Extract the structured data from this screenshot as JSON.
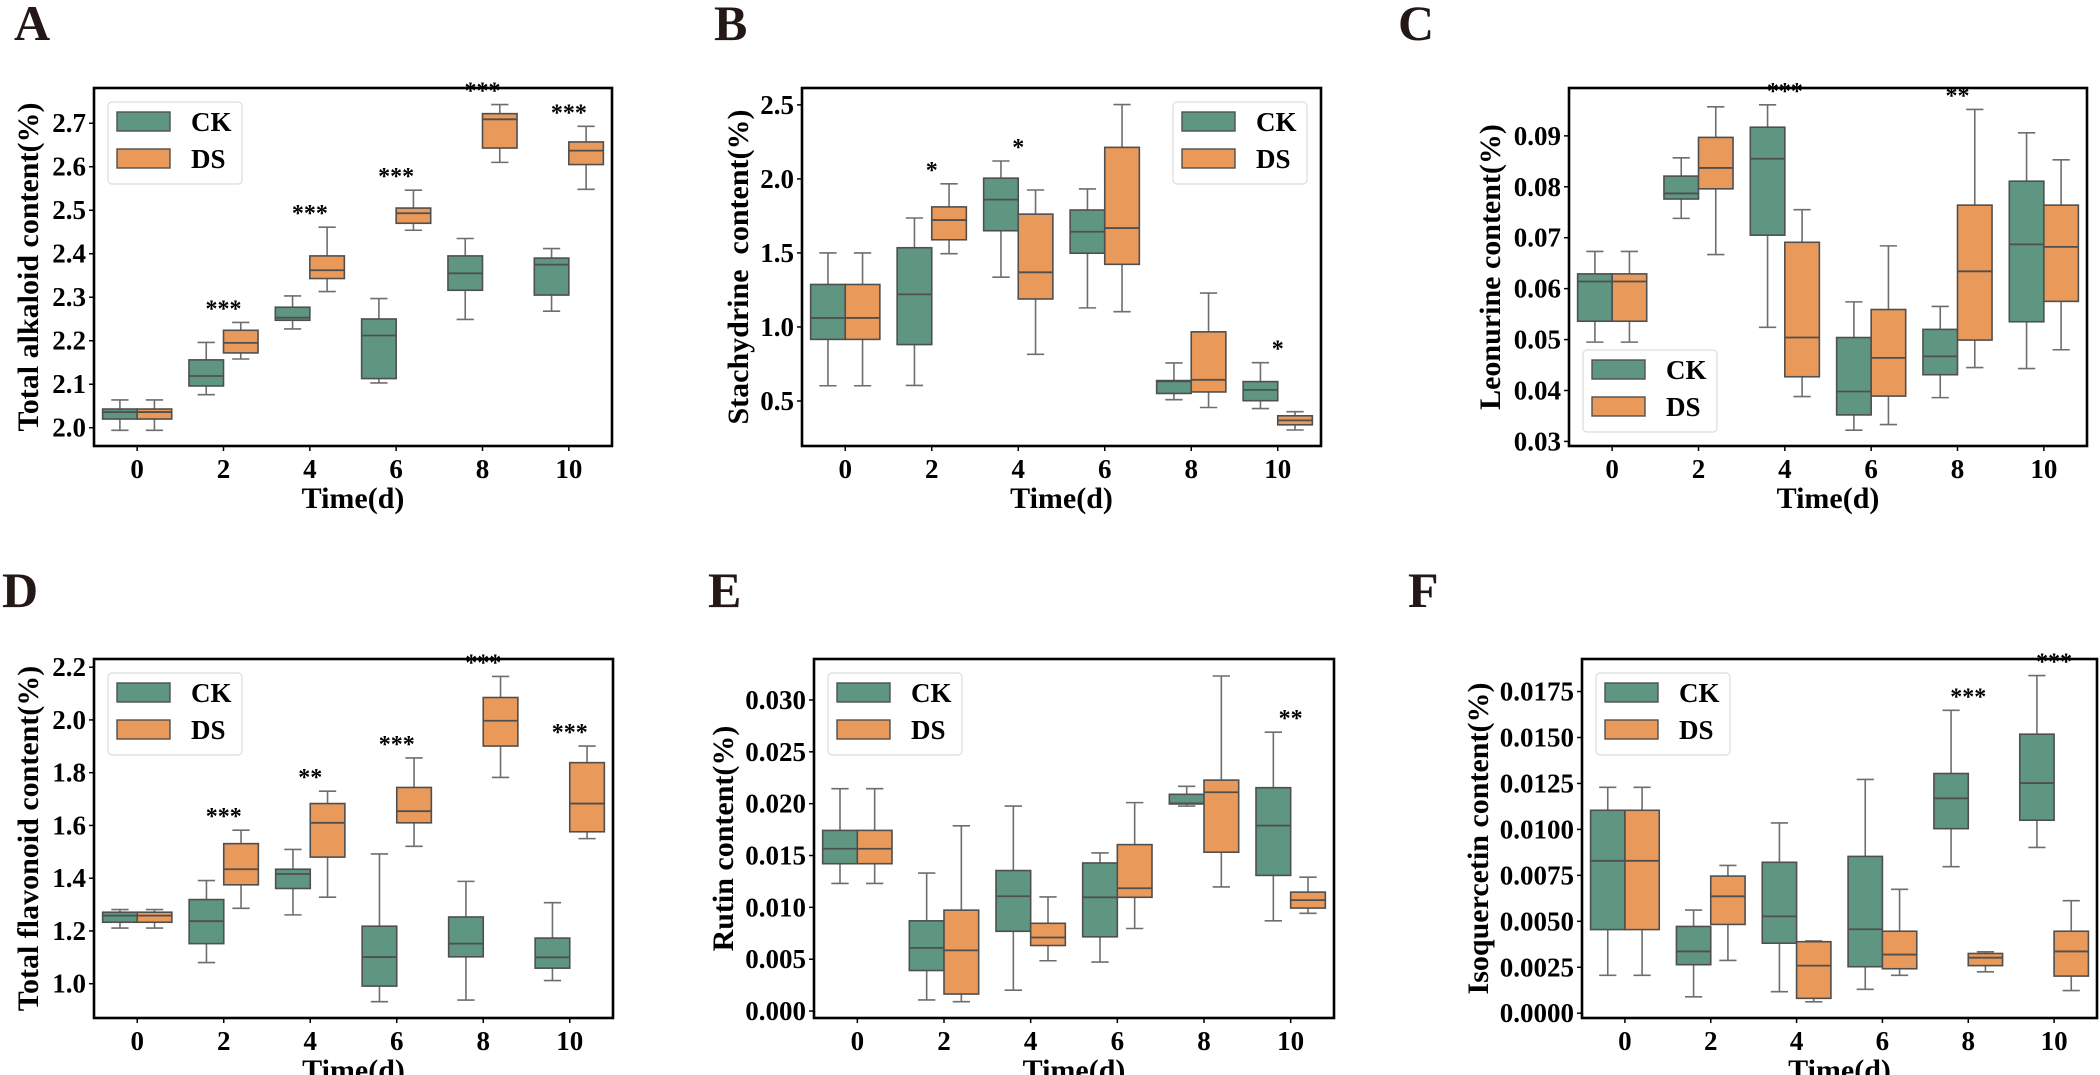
{
  "colors": {
    "CK": "#5f9681",
    "DS": "#e99a5b",
    "edge": "#4f4f4f",
    "whisker": "#6e6e6e"
  },
  "chart_data": [
    {
      "panel": "A",
      "type": "box",
      "xlabel": "Time(d)",
      "ylabel": "Total alkaloid content(%)",
      "categories": [
        "0",
        "2",
        "4",
        "6",
        "8",
        "10"
      ],
      "ylim": [
        1.958,
        2.781
      ],
      "yticks": [
        "2.0",
        "2.1",
        "2.2",
        "2.3",
        "2.4",
        "2.5",
        "2.6",
        "2.7"
      ],
      "legend": "upper-left",
      "series": [
        {
          "name": "CK",
          "boxes": [
            {
              "min": 1.994,
              "q1": 2.02,
              "median": 2.036,
              "q3": 2.043,
              "max": 2.064
            },
            {
              "min": 2.076,
              "q1": 2.096,
              "median": 2.119,
              "q3": 2.156,
              "max": 2.196
            },
            {
              "min": 2.227,
              "q1": 2.247,
              "median": 2.253,
              "q3": 2.277,
              "max": 2.303
            },
            {
              "min": 2.103,
              "q1": 2.113,
              "median": 2.212,
              "q3": 2.25,
              "max": 2.297
            },
            {
              "min": 2.249,
              "q1": 2.316,
              "median": 2.355,
              "q3": 2.395,
              "max": 2.435
            },
            {
              "min": 2.268,
              "q1": 2.305,
              "median": 2.375,
              "q3": 2.39,
              "max": 2.412
            }
          ]
        },
        {
          "name": "DS",
          "boxes": [
            {
              "min": 1.994,
              "q1": 2.02,
              "median": 2.036,
              "q3": 2.043,
              "max": 2.064
            },
            {
              "min": 2.158,
              "q1": 2.172,
              "median": 2.195,
              "q3": 2.224,
              "max": 2.242
            },
            {
              "min": 2.313,
              "q1": 2.343,
              "median": 2.362,
              "q3": 2.395,
              "max": 2.461
            },
            {
              "min": 2.454,
              "q1": 2.47,
              "median": 2.493,
              "q3": 2.505,
              "max": 2.546
            },
            {
              "min": 2.61,
              "q1": 2.643,
              "median": 2.709,
              "q3": 2.722,
              "max": 2.743
            },
            {
              "min": 2.548,
              "q1": 2.605,
              "median": 2.637,
              "q3": 2.657,
              "max": 2.693
            }
          ]
        }
      ],
      "significance": [
        "",
        "***",
        "***",
        "***",
        "***",
        "***"
      ]
    },
    {
      "panel": "B",
      "type": "box",
      "xlabel": "Time(d)",
      "ylabel": "Stachydrine  content(%)",
      "categories": [
        "0",
        "2",
        "4",
        "6",
        "8",
        "10"
      ],
      "ylim": [
        0.196,
        2.614
      ],
      "yticks": [
        "0.5",
        "1.0",
        "1.5",
        "2.0",
        "2.5"
      ],
      "legend": "upper-right",
      "series": [
        {
          "name": "CK",
          "boxes": [
            {
              "min": 0.603,
              "q1": 0.916,
              "median": 1.061,
              "q3": 1.287,
              "max": 1.5
            },
            {
              "min": 0.605,
              "q1": 0.881,
              "median": 1.22,
              "q3": 1.535,
              "max": 1.736
            },
            {
              "min": 1.336,
              "q1": 1.65,
              "median": 1.86,
              "q3": 2.005,
              "max": 2.121
            },
            {
              "min": 1.129,
              "q1": 1.498,
              "median": 1.643,
              "q3": 1.79,
              "max": 1.932
            },
            {
              "min": 0.509,
              "q1": 0.551,
              "median": 0.633,
              "q3": 0.638,
              "max": 0.757
            },
            {
              "min": 0.449,
              "q1": 0.502,
              "median": 0.575,
              "q3": 0.631,
              "max": 0.759
            }
          ]
        },
        {
          "name": "DS",
          "boxes": [
            {
              "min": 0.603,
              "q1": 0.916,
              "median": 1.061,
              "q3": 1.287,
              "max": 1.5
            },
            {
              "min": 1.495,
              "q1": 1.589,
              "median": 1.722,
              "q3": 1.811,
              "max": 1.967
            },
            {
              "min": 0.815,
              "q1": 1.189,
              "median": 1.369,
              "q3": 1.762,
              "max": 1.925
            },
            {
              "min": 1.103,
              "q1": 1.423,
              "median": 1.668,
              "q3": 2.213,
              "max": 2.502
            },
            {
              "min": 0.456,
              "q1": 0.561,
              "median": 0.643,
              "q3": 0.967,
              "max": 1.229
            },
            {
              "min": 0.304,
              "q1": 0.339,
              "median": 0.369,
              "q3": 0.4,
              "max": 0.428
            }
          ]
        }
      ],
      "significance": [
        "",
        "*",
        "*",
        "",
        "",
        "*"
      ]
    },
    {
      "panel": "C",
      "type": "box",
      "xlabel": "Time(d)",
      "ylabel": "Leonurine content(%)",
      "categories": [
        "0",
        "2",
        "4",
        "6",
        "8",
        "10"
      ],
      "ylim": [
        0.0291,
        0.0994
      ],
      "yticks": [
        "0.03",
        "0.04",
        "0.05",
        "0.06",
        "0.07",
        "0.08",
        "0.09"
      ],
      "legend": "lower-left",
      "series": [
        {
          "name": "CK",
          "boxes": [
            {
              "min": 0.0495,
              "q1": 0.0536,
              "median": 0.0614,
              "q3": 0.0629,
              "max": 0.0673
            },
            {
              "min": 0.0738,
              "q1": 0.0776,
              "median": 0.0787,
              "q3": 0.0821,
              "max": 0.0857
            },
            {
              "min": 0.0524,
              "q1": 0.0705,
              "median": 0.0855,
              "q3": 0.0917,
              "max": 0.0961
            },
            {
              "min": 0.0322,
              "q1": 0.0352,
              "median": 0.0398,
              "q3": 0.0504,
              "max": 0.0574
            },
            {
              "min": 0.0386,
              "q1": 0.0431,
              "median": 0.0467,
              "q3": 0.052,
              "max": 0.0565
            },
            {
              "min": 0.0443,
              "q1": 0.0535,
              "median": 0.0687,
              "q3": 0.0811,
              "max": 0.0906
            }
          ]
        },
        {
          "name": "DS",
          "boxes": [
            {
              "min": 0.0495,
              "q1": 0.0536,
              "median": 0.0614,
              "q3": 0.0629,
              "max": 0.0673
            },
            {
              "min": 0.0667,
              "q1": 0.0796,
              "median": 0.0837,
              "q3": 0.0897,
              "max": 0.0957
            },
            {
              "min": 0.0388,
              "q1": 0.0427,
              "median": 0.0504,
              "q3": 0.0691,
              "max": 0.0755
            },
            {
              "min": 0.0333,
              "q1": 0.0389,
              "median": 0.0464,
              "q3": 0.0559,
              "max": 0.0684
            },
            {
              "min": 0.0445,
              "q1": 0.0499,
              "median": 0.0634,
              "q3": 0.0764,
              "max": 0.0952
            },
            {
              "min": 0.048,
              "q1": 0.0575,
              "median": 0.0682,
              "q3": 0.0764,
              "max": 0.0853
            }
          ]
        }
      ],
      "significance": [
        "",
        "",
        "***",
        "",
        "**",
        ""
      ]
    },
    {
      "panel": "D",
      "type": "box",
      "xlabel": "Time(d)",
      "ylabel": "Total flavonoid content(%)",
      "categories": [
        "0",
        "2",
        "4",
        "6",
        "8",
        "10"
      ],
      "ylim": [
        0.87,
        2.231
      ],
      "yticks": [
        "1.0",
        "1.2",
        "1.4",
        "1.6",
        "1.8",
        "2.0",
        "2.2"
      ],
      "legend": "upper-left",
      "series": [
        {
          "name": "CK",
          "boxes": [
            {
              "min": 1.211,
              "q1": 1.233,
              "median": 1.258,
              "q3": 1.271,
              "max": 1.281
            },
            {
              "min": 1.08,
              "q1": 1.152,
              "median": 1.237,
              "q3": 1.319,
              "max": 1.391
            },
            {
              "min": 1.261,
              "q1": 1.361,
              "median": 1.416,
              "q3": 1.434,
              "max": 1.509
            },
            {
              "min": 0.932,
              "q1": 0.991,
              "median": 1.101,
              "q3": 1.218,
              "max": 1.492
            },
            {
              "min": 0.938,
              "q1": 1.102,
              "median": 1.152,
              "q3": 1.253,
              "max": 1.388
            },
            {
              "min": 1.012,
              "q1": 1.059,
              "median": 1.1,
              "q3": 1.173,
              "max": 1.307
            }
          ]
        },
        {
          "name": "DS",
          "boxes": [
            {
              "min": 1.211,
              "q1": 1.233,
              "median": 1.258,
              "q3": 1.271,
              "max": 1.281
            },
            {
              "min": 1.286,
              "q1": 1.375,
              "median": 1.434,
              "q3": 1.531,
              "max": 1.582
            },
            {
              "min": 1.328,
              "q1": 1.48,
              "median": 1.61,
              "q3": 1.683,
              "max": 1.73
            },
            {
              "min": 1.521,
              "q1": 1.61,
              "median": 1.654,
              "q3": 1.744,
              "max": 1.856
            },
            {
              "min": 1.782,
              "q1": 1.901,
              "median": 1.997,
              "q3": 2.085,
              "max": 2.165
            },
            {
              "min": 1.55,
              "q1": 1.576,
              "median": 1.683,
              "q3": 1.838,
              "max": 1.901
            }
          ]
        }
      ],
      "significance": [
        "",
        "***",
        "**",
        "***",
        "***",
        "***"
      ]
    },
    {
      "panel": "E",
      "type": "box",
      "xlabel": "Time(d)",
      "ylabel": "Rutin content(%)",
      "categories": [
        "0",
        "2",
        "4",
        "6",
        "8",
        "10"
      ],
      "ylim": [
        -0.00067,
        0.03395
      ],
      "yticks": [
        "0.000",
        "0.005",
        "0.010",
        "0.015",
        "0.020",
        "0.025",
        "0.030"
      ],
      "legend": "upper-left",
      "series": [
        {
          "name": "CK",
          "boxes": [
            {
              "min": 0.01231,
              "q1": 0.01421,
              "median": 0.01565,
              "q3": 0.01742,
              "max": 0.02144
            },
            {
              "min": 0.00107,
              "q1": 0.00391,
              "median": 0.00609,
              "q3": 0.0087,
              "max": 0.01331
            },
            {
              "min": 0.00201,
              "q1": 0.00769,
              "median": 0.01107,
              "q3": 0.01355,
              "max": 0.01977
            },
            {
              "min": 0.00472,
              "q1": 0.00716,
              "median": 0.01097,
              "q3": 0.01428,
              "max": 0.01525
            },
            {
              "min": 0.01977,
              "q1": 0.01997,
              "median": 0.02003,
              "q3": 0.0209,
              "max": 0.02167
            },
            {
              "min": 0.0087,
              "q1": 0.01308,
              "median": 0.01789,
              "q3": 0.02154,
              "max": 0.02689
            }
          ]
        },
        {
          "name": "DS",
          "boxes": [
            {
              "min": 0.01231,
              "q1": 0.01421,
              "median": 0.01565,
              "q3": 0.01742,
              "max": 0.02144
            },
            {
              "min": 0.0009,
              "q1": 0.00164,
              "median": 0.00585,
              "q3": 0.00973,
              "max": 0.01786
            },
            {
              "min": 0.00485,
              "q1": 0.00632,
              "median": 0.00709,
              "q3": 0.00846,
              "max": 0.011
            },
            {
              "min": 0.00796,
              "q1": 0.01097,
              "median": 0.01184,
              "q3": 0.01605,
              "max": 0.0201
            },
            {
              "min": 0.01197,
              "q1": 0.01532,
              "median": 0.0211,
              "q3": 0.02227,
              "max": 0.03231
            },
            {
              "min": 0.00943,
              "q1": 0.00993,
              "median": 0.0107,
              "q3": 0.01147,
              "max": 0.01291
            }
          ]
        }
      ],
      "significance": [
        "",
        "",
        "",
        "",
        "",
        "**"
      ]
    },
    {
      "panel": "F",
      "type": "box",
      "xlabel": "Time(d)",
      "ylabel": "Isoquercetin content(%)",
      "categories": [
        "0",
        "2",
        "4",
        "6",
        "8",
        "10"
      ],
      "ylim": [
        -0.00026,
        0.01927
      ],
      "yticks": [
        "0.0000",
        "0.0025",
        "0.0050",
        "0.0075",
        "0.0100",
        "0.0125",
        "0.0150",
        "0.0175"
      ],
      "legend": "upper-left",
      "series": [
        {
          "name": "CK",
          "boxes": [
            {
              "min": 0.00206,
              "q1": 0.00455,
              "median": 0.00829,
              "q3": 0.01104,
              "max": 0.01229
            },
            {
              "min": 0.00089,
              "q1": 0.00264,
              "median": 0.00336,
              "q3": 0.00472,
              "max": 0.00561
            },
            {
              "min": 0.00117,
              "q1": 0.00381,
              "median": 0.00527,
              "q3": 0.00821,
              "max": 0.01035
            },
            {
              "min": 0.0013,
              "q1": 0.00253,
              "median": 0.00457,
              "q3": 0.00853,
              "max": 0.01272
            },
            {
              "min": 0.00797,
              "q1": 0.01004,
              "median": 0.01169,
              "q3": 0.01304,
              "max": 0.01648
            },
            {
              "min": 0.00902,
              "q1": 0.0105,
              "median": 0.01252,
              "q3": 0.01518,
              "max": 0.01837
            }
          ]
        },
        {
          "name": "DS",
          "boxes": [
            {
              "min": 0.00206,
              "q1": 0.00455,
              "median": 0.00829,
              "q3": 0.01104,
              "max": 0.01229
            },
            {
              "min": 0.00287,
              "q1": 0.00483,
              "median": 0.00636,
              "q3": 0.00746,
              "max": 0.00804
            },
            {
              "min": 0.00062,
              "q1": 0.00081,
              "median": 0.00259,
              "q3": 0.00389,
              "max": 0.00393
            },
            {
              "min": 0.00206,
              "q1": 0.00242,
              "median": 0.00319,
              "q3": 0.00446,
              "max": 0.00674
            },
            {
              "min": 0.00225,
              "q1": 0.00259,
              "median": 0.00302,
              "q3": 0.00325,
              "max": 0.00334
            },
            {
              "min": 0.00123,
              "q1": 0.00202,
              "median": 0.00336,
              "q3": 0.00446,
              "max": 0.00612
            }
          ]
        }
      ],
      "significance": [
        "",
        "",
        "",
        "",
        "***",
        "***"
      ]
    }
  ]
}
